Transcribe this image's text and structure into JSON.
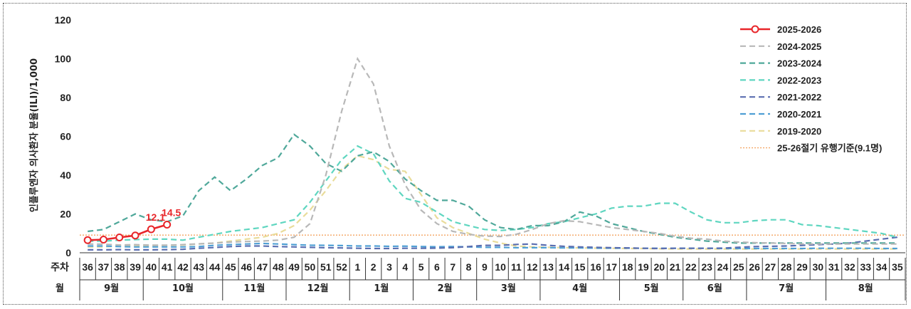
{
  "chart_data": {
    "type": "line",
    "ylabel": "인플루엔자 의사환자 분율(ILI)/1,000",
    "ylim": [
      0,
      120
    ],
    "yticks": [
      0,
      20,
      40,
      60,
      80,
      100,
      120
    ],
    "row_labels": {
      "week": "주차",
      "month": "월"
    },
    "weeks": [
      "36",
      "37",
      "38",
      "39",
      "40",
      "41",
      "42",
      "43",
      "44",
      "45",
      "46",
      "47",
      "48",
      "49",
      "50",
      "51",
      "52",
      "1",
      "2",
      "3",
      "4",
      "5",
      "6",
      "7",
      "8",
      "9",
      "10",
      "11",
      "12",
      "13",
      "14",
      "15",
      "16",
      "17",
      "18",
      "19",
      "20",
      "21",
      "22",
      "23",
      "24",
      "25",
      "26",
      "27",
      "28",
      "29",
      "30",
      "31",
      "32",
      "33",
      "34",
      "35"
    ],
    "months": [
      {
        "label": "9월",
        "start": 0,
        "end": 3
      },
      {
        "label": "10월",
        "start": 4,
        "end": 8
      },
      {
        "label": "11월",
        "start": 9,
        "end": 12
      },
      {
        "label": "12월",
        "start": 13,
        "end": 16
      },
      {
        "label": "1월",
        "start": 17,
        "end": 20
      },
      {
        "label": "2월",
        "start": 21,
        "end": 24
      },
      {
        "label": "3월",
        "start": 25,
        "end": 28
      },
      {
        "label": "4월",
        "start": 29,
        "end": 33
      },
      {
        "label": "5월",
        "start": 34,
        "end": 37
      },
      {
        "label": "6월",
        "start": 38,
        "end": 41
      },
      {
        "label": "7월",
        "start": 42,
        "end": 46
      },
      {
        "label": "8월",
        "start": 47,
        "end": 51
      }
    ],
    "threshold": {
      "name": "25-26절기 유행기준(9.1명)",
      "value": 9.1,
      "color": "#f4a460"
    },
    "series": [
      {
        "name": "2025-2026",
        "color": "#e8262a",
        "style": "solid",
        "markers": true,
        "values": [
          6.5,
          6.8,
          7.9,
          8.9,
          12.1,
          14.5
        ]
      },
      {
        "name": "2024-2025",
        "color": "#b8b8b8",
        "style": "dash",
        "values": [
          4.5,
          4.4,
          4.0,
          4.2,
          3.9,
          3.9,
          4.2,
          4.6,
          5.0,
          5.5,
          5.8,
          6.0,
          6.5,
          8.0,
          15,
          40,
          73,
          100,
          87,
          55,
          35,
          22,
          15,
          11,
          9.5,
          8.6,
          8.4,
          9.5,
          12,
          15,
          16.5,
          16,
          14.5,
          13,
          12,
          11,
          10,
          8.5,
          7.5,
          7,
          6,
          5.5,
          5.2,
          5,
          4.8,
          4.5,
          4.5,
          4.5,
          4.5,
          4.5,
          4.5,
          4.5
        ]
      },
      {
        "name": "2023-2024",
        "color": "#4fa89a",
        "style": "dash",
        "values": [
          11,
          12,
          16,
          20,
          17,
          16,
          19,
          32,
          39,
          32,
          38,
          45,
          49,
          61,
          55,
          46,
          42,
          50,
          52,
          47,
          38,
          32,
          27,
          27,
          24,
          17,
          13,
          12,
          14,
          14,
          16,
          21,
          19,
          15,
          13,
          11,
          9.5,
          8,
          7,
          6,
          5.5,
          5,
          5,
          5,
          5,
          5,
          5,
          5,
          5,
          5,
          5,
          5
        ]
      },
      {
        "name": "2022-2023",
        "color": "#5fd6c0",
        "style": "dash",
        "values": [
          6,
          6,
          6.5,
          6.8,
          7,
          7,
          6.5,
          8,
          9.5,
          11,
          12,
          13,
          15,
          17,
          26,
          37,
          48,
          55,
          51,
          37,
          28,
          26,
          21,
          16,
          14,
          12,
          11.5,
          12,
          13,
          15,
          16,
          18,
          20,
          23,
          24,
          24,
          25.5,
          25.5,
          21,
          17,
          15.5,
          15.5,
          16.5,
          17,
          17,
          14.5,
          14,
          13,
          12,
          11,
          10,
          8
        ]
      },
      {
        "name": "2021-2022",
        "color": "#5b6eb0",
        "style": "dash",
        "values": [
          1.5,
          1.5,
          1.6,
          1.5,
          1.5,
          1.6,
          1.8,
          2.3,
          2.7,
          3.2,
          3.5,
          3.5,
          3.2,
          3.0,
          2.8,
          2.6,
          2.5,
          2.3,
          2.2,
          2.2,
          2.3,
          2.3,
          2.4,
          2.6,
          3.2,
          3.8,
          3.8,
          4.3,
          4.5,
          3.8,
          3.3,
          3.0,
          2.8,
          2.6,
          2.5,
          2.3,
          2.2,
          2.3,
          2.3,
          2.3,
          2.4,
          2.8,
          3.2,
          3.3,
          3.5,
          3.8,
          4.2,
          4.5,
          5.0,
          6.0,
          7.0,
          8.0
        ]
      },
      {
        "name": "2020-2021",
        "color": "#4f9fd4",
        "style": "dash",
        "values": [
          3.5,
          3.5,
          3.2,
          3.0,
          3.0,
          3.0,
          3.0,
          3.2,
          3.8,
          4.2,
          4.5,
          4.8,
          4.5,
          4.2,
          3.9,
          3.8,
          3.7,
          3.5,
          3.5,
          3.3,
          3.4,
          3.2,
          3.1,
          3.2,
          3.0,
          2.8,
          2.8,
          2.6,
          2.6,
          2.6,
          2.5,
          2.5,
          2.4,
          2.4,
          2.4,
          2.3,
          2.3,
          2.3,
          2.3,
          2.3,
          2.2,
          2.2,
          2.2,
          2.2,
          2.2,
          2.2,
          2.3,
          2.3,
          2.3,
          2.3,
          2.2,
          2.2
        ]
      },
      {
        "name": "2019-2020",
        "color": "#e9dc9a",
        "style": "dash",
        "values": [
          3.0,
          3.0,
          3.5,
          3.8,
          3.5,
          3.8,
          4.0,
          4.5,
          5.0,
          6.0,
          7.0,
          8.0,
          10,
          14,
          22,
          32,
          43,
          50,
          48,
          43,
          42,
          30,
          18,
          13,
          10,
          7,
          5,
          3.5,
          3.0,
          2.8,
          2.6,
          2.5,
          2.4,
          2.3,
          2.2,
          2.2,
          2.1,
          2.0,
          2.0,
          2.0,
          2.0,
          2.0,
          2.0,
          2.0,
          2.0,
          2.0,
          2.0,
          2.0,
          2.0,
          2.0,
          2.0,
          2.0
        ]
      }
    ],
    "data_labels": [
      {
        "series": "2025-2026",
        "index": 4,
        "text": "12.1"
      },
      {
        "series": "2025-2026",
        "index": 5,
        "text": "14.5"
      }
    ],
    "legend_position": "top-right"
  }
}
